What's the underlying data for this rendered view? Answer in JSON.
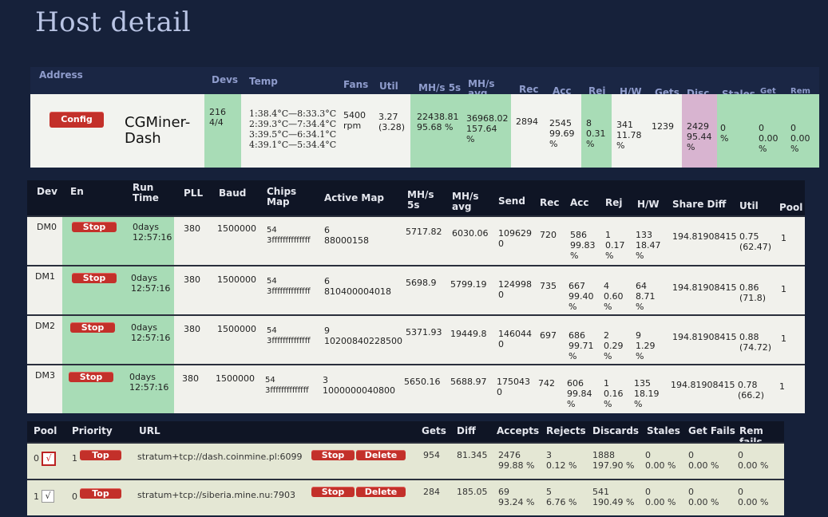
{
  "page": {
    "title": "Host detail"
  },
  "summary": {
    "headers": [
      "Address",
      "Devs",
      "Temp",
      "Fans",
      "Util",
      "MH/s 5s",
      "MH/s avg",
      "Rec",
      "Acc",
      "Rej",
      "H/W",
      "Gets",
      "Disc",
      "Stales",
      "Get Fails",
      "Rem Fails"
    ],
    "row": {
      "config_label": "Config",
      "name": "CGMiner-Dash",
      "devs": "216\n4/4",
      "temp": "1:38.4°C—8:33.3°C\n2:39.3°C—7:34.4°C\n3:39.5°C—6:34.1°C\n4:39.1°C—5:34.4°C",
      "fans": "5400\nrpm",
      "util": "3.27\n(3.28)",
      "mh5s": "22438.81\n95.68 %",
      "mhavg": "36968.02\n157.64\n%",
      "rec": "2894",
      "acc": "2545\n99.69\n%",
      "rej": "8\n0.31\n%",
      "hw": "341\n11.78\n%",
      "gets": "1239",
      "disc": "2429\n95.44\n%",
      "stales": "0\n%",
      "getfails": "0\n0.00\n%",
      "remfails": "0\n0.00\n%"
    }
  },
  "devices": {
    "headers": [
      "Dev",
      "En",
      "Run Time",
      "PLL",
      "Baud",
      "Chips Map",
      "Active Map",
      "MH/s 5s",
      "MH/s avg",
      "Send",
      "Rec",
      "Acc",
      "Rej",
      "H/W",
      "Share Diff",
      "Util",
      "Pool"
    ],
    "stop_label": "Stop",
    "rows": [
      {
        "dev": "DM0",
        "run": "0days\n12:57:16",
        "pll": "380",
        "baud": "1500000",
        "chips": "54\n3ffffffffffffff",
        "active": "6\n88000158",
        "mh5s": "5717.82",
        "mhavg": "6030.06",
        "send": "109629\n0",
        "rec": "720",
        "acc": "586\n99.83\n%",
        "rej": "1\n0.17\n%",
        "hw": "133\n18.47\n%",
        "diff": "194.81908415",
        "util": "0.75\n(62.47)",
        "pool": "1"
      },
      {
        "dev": "DM1",
        "run": "0days\n12:57:16",
        "pll": "380",
        "baud": "1500000",
        "chips": "54\n3ffffffffffffff",
        "active": "6\n810400004018",
        "mh5s": "5698.9",
        "mhavg": "5799.19",
        "send": "124998\n0",
        "rec": "735",
        "acc": "667\n99.40\n%",
        "rej": "4\n0.60\n%",
        "hw": "64\n8.71\n%",
        "diff": "194.81908415",
        "util": "0.86\n(71.8)",
        "pool": "1"
      },
      {
        "dev": "DM2",
        "run": "0days\n12:57:16",
        "pll": "380",
        "baud": "1500000",
        "chips": "54\n3ffffffffffffff",
        "active": "9\n10200840228500",
        "mh5s": "5371.93",
        "mhavg": "19449.8",
        "send": "146044\n0",
        "rec": "697",
        "acc": "686\n99.71\n%",
        "rej": "2\n0.29\n%",
        "hw": "9\n1.29\n%",
        "diff": "194.81908415",
        "util": "0.88\n(74.72)",
        "pool": "1"
      },
      {
        "dev": "DM3",
        "run": "0days\n12:57:16",
        "pll": "380",
        "baud": "1500000",
        "chips": "54\n3ffffffffffffff",
        "active": "3\n1000000040800",
        "mh5s": "5650.16",
        "mhavg": "5688.97",
        "send": "175043\n0",
        "rec": "742",
        "acc": "606\n99.84\n%",
        "rej": "1\n0.16\n%",
        "hw": "135\n18.19\n%",
        "diff": "194.81908415",
        "util": "0.78\n(66.2)",
        "pool": "1"
      }
    ]
  },
  "pools": {
    "headers": [
      "Pool",
      "Priority",
      "URL",
      "Gets",
      "Diff",
      "Accepts",
      "Rejects",
      "Discards",
      "Stales",
      "Get Fails",
      "Rem fails"
    ],
    "top_label": "Top",
    "stop_label": "Stop",
    "delete_label": "Delete",
    "rows": [
      {
        "pool": "0",
        "check": "√",
        "priority": "1",
        "url": "stratum+tcp://dash.coinmine.pl:6099",
        "gets": "954",
        "diff": "81.345",
        "accepts": "2476\n99.88 %",
        "rejects": "3\n0.12 %",
        "discards": "1888\n197.90 %",
        "stales": "0\n0.00 %",
        "getfails": "0\n0.00 %",
        "remfails": "0\n0.00 %"
      },
      {
        "pool": "1",
        "check": "√",
        "priority": "0",
        "url": "stratum+tcp://siberia.mine.nu:7903",
        "gets": "284",
        "diff": "185.05",
        "accepts": "69\n93.24 %",
        "rejects": "5\n6.76 %",
        "discards": "541\n190.49 %",
        "stales": "0\n0.00 %",
        "getfails": "0\n0.00 %",
        "remfails": "0\n0.00 %"
      }
    ]
  }
}
